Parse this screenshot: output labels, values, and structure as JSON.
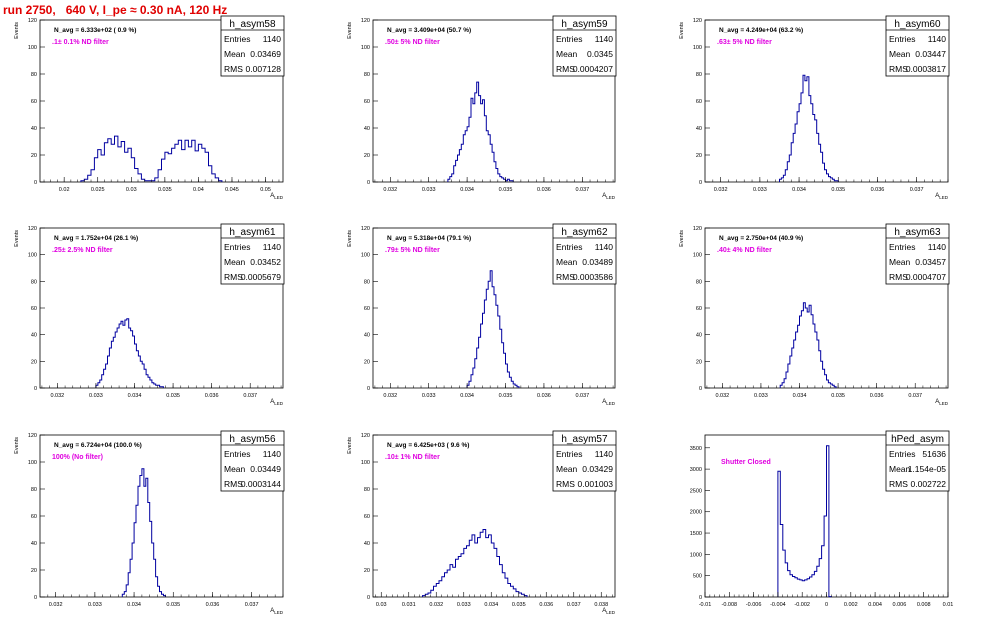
{
  "title": "run 2750,   640 V, I_pe ≈ 0.30 nA, 120 Hz",
  "chart_data": [
    {
      "type": "bar",
      "name": "h_asym58",
      "navg": "N_avg = 6.333e+02 ( 0.9 %)",
      "filter": ".1± 0.1% ND filter",
      "stats": {
        "entries": "1140",
        "mean": "0.03469",
        "rms": "0.007128"
      },
      "ylabel": "Events",
      "xlabel": "A_{LED}",
      "xlim": [
        0.0164,
        0.0526
      ],
      "ylim": [
        0,
        120
      ],
      "xticks": [
        "0.02",
        "0.025",
        "0.03",
        "0.035",
        "0.04",
        "0.045",
        "0.05"
      ],
      "yticks": [
        "0",
        "20",
        "40",
        "60",
        "80",
        "100",
        "120"
      ],
      "bin_start": 0.0225,
      "bin_width": 0.0005,
      "values": [
        1,
        2,
        5,
        9,
        18,
        24,
        20,
        29,
        32,
        28,
        34,
        26,
        30,
        22,
        25,
        18,
        10,
        6,
        2,
        1,
        1,
        1,
        3,
        9,
        17,
        22,
        21,
        25,
        28,
        31,
        24,
        31,
        26,
        31,
        23,
        28,
        25,
        22,
        12,
        6,
        3,
        1
      ]
    },
    {
      "type": "bar",
      "name": "h_asym59",
      "navg": "N_avg = 3.409e+04 (50.7 %)",
      "filter": ".50± 5% ND filter",
      "stats": {
        "entries": "1140",
        "mean": "0.0345",
        "rms": "0.0004207"
      },
      "ylabel": "Events",
      "xlabel": "A_{LED}",
      "xlim": [
        0.03155,
        0.03785
      ],
      "ylim": [
        0,
        120
      ],
      "xticks": [
        "0.032",
        "0.033",
        "0.034",
        "0.035",
        "0.036",
        "0.037"
      ],
      "yticks": [
        "0",
        "20",
        "40",
        "60",
        "80",
        "100",
        "120"
      ],
      "bin_start": 0.0335,
      "bin_width": 5e-05,
      "values": [
        2,
        4,
        6,
        12,
        16,
        20,
        24,
        28,
        35,
        38,
        41,
        48,
        62,
        58,
        66,
        74,
        64,
        58,
        61,
        49,
        38,
        35,
        28,
        22,
        15,
        10,
        6,
        4,
        3,
        2,
        1,
        2,
        1,
        1
      ]
    },
    {
      "type": "bar",
      "name": "h_asym60",
      "navg": "N_avg = 4.249e+04 (63.2 %)",
      "filter": ".63± 5% ND filter",
      "stats": {
        "entries": "1140",
        "mean": "0.03447",
        "rms": "0.0003817"
      },
      "ylabel": "Events",
      "xlabel": "A_{LED}",
      "xlim": [
        0.0316,
        0.0378
      ],
      "ylim": [
        0,
        120
      ],
      "xticks": [
        "0.032",
        "0.033",
        "0.034",
        "0.035",
        "0.036",
        "0.037"
      ],
      "yticks": [
        "0",
        "20",
        "40",
        "60",
        "80",
        "100",
        "120"
      ],
      "bin_start": 0.0335,
      "bin_width": 5e-05,
      "values": [
        2,
        3,
        5,
        9,
        15,
        20,
        29,
        36,
        43,
        52,
        58,
        66,
        79,
        75,
        78,
        64,
        58,
        50,
        46,
        36,
        28,
        22,
        14,
        9,
        6,
        4,
        3,
        2,
        1,
        1
      ]
    },
    {
      "type": "bar",
      "name": "h_asym61",
      "navg": "N_avg = 1.752e+04 (26.1 %)",
      "filter": ".25± 2.5% ND filter",
      "stats": {
        "entries": "1140",
        "mean": "0.03452",
        "rms": "0.0005679"
      },
      "ylabel": "Events",
      "xlabel": "A_{LED}",
      "xlim": [
        0.03155,
        0.03785
      ],
      "ylim": [
        0,
        120
      ],
      "xticks": [
        "0.032",
        "0.033",
        "0.034",
        "0.035",
        "0.036",
        "0.037"
      ],
      "yticks": [
        "0",
        "20",
        "40",
        "60",
        "80",
        "100",
        "120"
      ],
      "bin_start": 0.033,
      "bin_width": 5e-05,
      "values": [
        2,
        4,
        6,
        10,
        14,
        18,
        24,
        30,
        35,
        38,
        42,
        45,
        48,
        50,
        47,
        51,
        52,
        45,
        43,
        39,
        33,
        28,
        24,
        20,
        18,
        14,
        10,
        8,
        6,
        4,
        3,
        2,
        2,
        1,
        1
      ]
    },
    {
      "type": "bar",
      "name": "h_asym62",
      "navg": "N_avg = 5.318e+04 (79.1 %)",
      "filter": ".79± 5% ND filter",
      "stats": {
        "entries": "1140",
        "mean": "0.03489",
        "rms": "0.0003586"
      },
      "ylabel": "Events",
      "xlabel": "A_{LED}",
      "xlim": [
        0.03155,
        0.03785
      ],
      "ylim": [
        0,
        120
      ],
      "xticks": [
        "0.032",
        "0.033",
        "0.034",
        "0.035",
        "0.036",
        "0.037"
      ],
      "yticks": [
        "0",
        "20",
        "40",
        "60",
        "80",
        "100",
        "120"
      ],
      "bin_start": 0.034,
      "bin_width": 5e-05,
      "values": [
        2,
        5,
        10,
        15,
        22,
        30,
        38,
        48,
        56,
        66,
        74,
        80,
        88,
        76,
        70,
        62,
        54,
        44,
        34,
        26,
        18,
        12,
        8,
        5,
        3,
        2,
        1
      ]
    },
    {
      "type": "bar",
      "name": "h_asym63",
      "navg": "N_avg = 2.750e+04 (40.9 %)",
      "filter": ".40± 4% ND filter",
      "stats": {
        "entries": "1140",
        "mean": "0.03457",
        "rms": "0.0004707"
      },
      "ylabel": "Events",
      "xlabel": "A_{LED}",
      "xlim": [
        0.03155,
        0.03785
      ],
      "ylim": [
        0,
        120
      ],
      "xticks": [
        "0.032",
        "0.033",
        "0.034",
        "0.035",
        "0.036",
        "0.037"
      ],
      "yticks": [
        "0",
        "20",
        "40",
        "60",
        "80",
        "100",
        "120"
      ],
      "bin_start": 0.0335,
      "bin_width": 5e-05,
      "values": [
        2,
        4,
        7,
        12,
        18,
        24,
        30,
        36,
        42,
        47,
        54,
        58,
        64,
        60,
        57,
        62,
        55,
        48,
        42,
        36,
        28,
        20,
        14,
        10,
        6,
        4,
        3,
        2,
        1
      ]
    },
    {
      "type": "bar",
      "name": "h_asym56",
      "navg": "N_avg = 6.724e+04 (100.0 %)",
      "filter": "100% (No filter)",
      "stats": {
        "entries": "1140",
        "mean": "0.03449",
        "rms": "0.0003144"
      },
      "ylabel": "Events",
      "xlabel": "A_{LED}",
      "xlim": [
        0.0316,
        0.0378
      ],
      "ylim": [
        0,
        120
      ],
      "xticks": [
        "0.032",
        "0.033",
        "0.034",
        "0.035",
        "0.036",
        "0.037"
      ],
      "yticks": [
        "0",
        "20",
        "40",
        "60",
        "80",
        "100",
        "120"
      ],
      "bin_start": 0.0337,
      "bin_width": 5e-05,
      "values": [
        2,
        4,
        9,
        18,
        28,
        40,
        55,
        68,
        82,
        90,
        95,
        82,
        88,
        70,
        56,
        40,
        28,
        15,
        8,
        4,
        2,
        1
      ]
    },
    {
      "type": "bar",
      "name": "h_asym57",
      "navg": "N_avg = 6.425e+03 ( 9.6 %)",
      "filter": ".10± 1% ND filter",
      "stats": {
        "entries": "1140",
        "mean": "0.03429",
        "rms": "0.001003"
      },
      "ylabel": "Events",
      "xlabel": "A_{LED}",
      "xlim": [
        0.0297,
        0.0385
      ],
      "ylim": [
        0,
        120
      ],
      "xticks": [
        "0.03",
        "0.031",
        "0.032",
        "0.033",
        "0.034",
        "0.035",
        "0.036",
        "0.037",
        "0.038"
      ],
      "yticks": [
        "0",
        "20",
        "40",
        "60",
        "80",
        "100",
        "120"
      ],
      "bin_start": 0.0315,
      "bin_width": 0.0001,
      "values": [
        1,
        2,
        3,
        5,
        8,
        10,
        12,
        15,
        18,
        20,
        24,
        22,
        28,
        30,
        32,
        36,
        38,
        42,
        46,
        40,
        44,
        48,
        50,
        44,
        46,
        40,
        36,
        30,
        24,
        18,
        14,
        10,
        8,
        6,
        4,
        3,
        2,
        1
      ]
    },
    {
      "type": "bar",
      "name": "hPed_asym",
      "navg": "",
      "filter": "Shutter Closed",
      "stats": {
        "entries": "51636",
        "mean": "1.154e-05",
        "rms": "0.002722"
      },
      "ylabel": "",
      "xlabel": "",
      "xlim": [
        -0.01,
        0.01
      ],
      "ylim": [
        0,
        3800
      ],
      "xticks": [
        "-0.01",
        "-0.008",
        "-0.006",
        "-0.004",
        "-0.002",
        "0",
        "0.002",
        "0.004",
        "0.006",
        "0.008",
        "0.01"
      ],
      "yticks": [
        "0",
        "500",
        "1000",
        "1500",
        "2000",
        "2500",
        "3000",
        "3500"
      ],
      "bin_start": -0.004,
      "bin_width": 0.0002,
      "values": [
        2950,
        1700,
        1100,
        800,
        620,
        520,
        480,
        450,
        420,
        400,
        380,
        400,
        430,
        470,
        520,
        600,
        720,
        900,
        1200,
        1900,
        3550,
        10
      ]
    }
  ]
}
